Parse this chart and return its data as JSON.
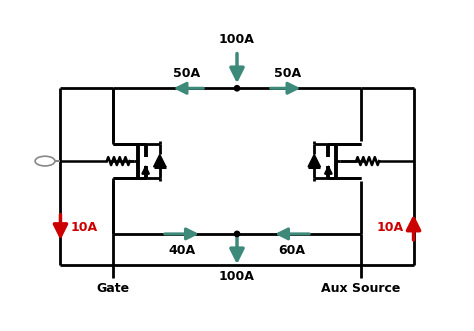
{
  "bg_color": "#ffffff",
  "line_color": "#000000",
  "green_color": "#3d8a7a",
  "red_color": "#cc0000",
  "gray_color": "#888888",
  "figsize": [
    4.74,
    3.31
  ],
  "dpi": 100,
  "labels": {
    "top_current": "100A",
    "left_top": "50A",
    "right_top": "50A",
    "left_bot": "40A",
    "right_bot": "60A",
    "bot_current": "100A",
    "left_red": "10A",
    "right_red": "10A",
    "gate_label": "Gate",
    "aux_label": "Aux Source"
  }
}
